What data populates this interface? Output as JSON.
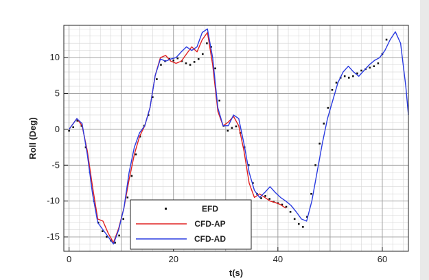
{
  "chart_data": {
    "type": "line",
    "title": "",
    "xlabel": "t(s)",
    "ylabel": "Roll (Deg)",
    "xlim": [
      -1,
      65
    ],
    "ylim": [
      -17,
      14.5
    ],
    "xticks": [
      0,
      20,
      40,
      60
    ],
    "yticks": [
      -15,
      -10,
      -5,
      0,
      5,
      10
    ],
    "grid": true,
    "legend_position": "bottom-center",
    "series": [
      {
        "name": "EFD",
        "style": "markers",
        "color": "#111111",
        "points": [
          [
            0,
            -0.2
          ],
          [
            0.8,
            0.3
          ],
          [
            1.6,
            1.2
          ],
          [
            2.4,
            0.5
          ],
          [
            3.2,
            -2.5
          ],
          [
            4,
            -6
          ],
          [
            4.8,
            -10
          ],
          [
            5.6,
            -13
          ],
          [
            6.4,
            -14.2
          ],
          [
            7.2,
            -15
          ],
          [
            8,
            -15.5
          ],
          [
            8.8,
            -15.8
          ],
          [
            9.6,
            -14.8
          ],
          [
            10.4,
            -12.5
          ],
          [
            11.2,
            -9.5
          ],
          [
            12,
            -6.5
          ],
          [
            12.8,
            -3.5
          ],
          [
            13.6,
            -1
          ],
          [
            14.4,
            0.5
          ],
          [
            15.2,
            2
          ],
          [
            16,
            4.5
          ],
          [
            16.8,
            7
          ],
          [
            17.6,
            9
          ],
          [
            18.4,
            9.5
          ],
          [
            19.2,
            9.8
          ],
          [
            20,
            9.6
          ],
          [
            20.8,
            9.9
          ],
          [
            21.6,
            9.5
          ],
          [
            22.4,
            9.2
          ],
          [
            23.2,
            9
          ],
          [
            24,
            9.4
          ],
          [
            24.8,
            9.8
          ],
          [
            25.6,
            10.5
          ],
          [
            26.4,
            12
          ],
          [
            27.2,
            11.5
          ],
          [
            28,
            8.5
          ],
          [
            28.8,
            4
          ],
          [
            29.6,
            0.5
          ],
          [
            30.4,
            -0.2
          ],
          [
            31.2,
            0.2
          ],
          [
            32,
            0.4
          ],
          [
            32.8,
            -0.5
          ],
          [
            33.6,
            -2.5
          ],
          [
            34.4,
            -5
          ],
          [
            35.2,
            -7.5
          ],
          [
            36,
            -9
          ],
          [
            36.8,
            -9.6
          ],
          [
            37.6,
            -9.3
          ],
          [
            38.4,
            -9.7
          ],
          [
            39.2,
            -10.1
          ],
          [
            40,
            -10.3
          ],
          [
            40.8,
            -10.5
          ],
          [
            41.6,
            -10.8
          ],
          [
            42.4,
            -11.5
          ],
          [
            43.2,
            -12.5
          ],
          [
            44,
            -13.2
          ],
          [
            44.8,
            -13.6
          ],
          [
            45.6,
            -12.2
          ],
          [
            46.4,
            -9
          ],
          [
            47.2,
            -5
          ],
          [
            48,
            -2
          ],
          [
            48.8,
            0.8
          ],
          [
            49.6,
            3
          ],
          [
            50.4,
            5.5
          ],
          [
            51.2,
            6.5
          ],
          [
            52,
            7.2
          ],
          [
            52.8,
            7.4
          ],
          [
            53.6,
            7.2
          ],
          [
            54.4,
            7.4
          ],
          [
            55.2,
            7.8
          ],
          [
            56,
            8.2
          ],
          [
            56.8,
            8.4
          ],
          [
            57.6,
            8.6
          ],
          [
            58.4,
            8.8
          ],
          [
            59.2,
            9.2
          ],
          [
            60,
            10.5
          ],
          [
            60.8,
            12.5
          ]
        ]
      },
      {
        "name": "CFD-AP",
        "style": "line",
        "color": "#e02020",
        "points": [
          [
            0,
            0
          ],
          [
            1.5,
            1.5
          ],
          [
            2.5,
            0.5
          ],
          [
            3.5,
            -3
          ],
          [
            4.5,
            -8
          ],
          [
            5.5,
            -12.5
          ],
          [
            6.5,
            -12.8
          ],
          [
            7.5,
            -14.5
          ],
          [
            8.5,
            -15.8
          ],
          [
            9.5,
            -13.8
          ],
          [
            10.5,
            -11
          ],
          [
            11.5,
            -7
          ],
          [
            12.5,
            -3.5
          ],
          [
            13.5,
            -1
          ],
          [
            14.5,
            0.5
          ],
          [
            15.5,
            3
          ],
          [
            16.5,
            7.5
          ],
          [
            17.5,
            10
          ],
          [
            18.5,
            10.3
          ],
          [
            19.5,
            9.5
          ],
          [
            20.5,
            9.2
          ],
          [
            21.5,
            9.5
          ],
          [
            22.5,
            10.5
          ],
          [
            23.5,
            11.5
          ],
          [
            24.5,
            10.8
          ],
          [
            25.5,
            12.5
          ],
          [
            26.5,
            13.5
          ],
          [
            27.5,
            9
          ],
          [
            28.5,
            2.5
          ],
          [
            29.5,
            0.5
          ],
          [
            30.5,
            1
          ],
          [
            31.5,
            1.8
          ],
          [
            32.5,
            0.5
          ],
          [
            33.5,
            -3
          ],
          [
            34.5,
            -7.5
          ],
          [
            35.5,
            -9.5
          ],
          [
            36.5,
            -9
          ],
          [
            37.5,
            -9.5
          ],
          [
            38.5,
            -10
          ],
          [
            39.5,
            -10.2
          ],
          [
            40.5,
            -10.5
          ],
          [
            41.5,
            -11
          ]
        ]
      },
      {
        "name": "CFD-AD",
        "style": "line",
        "color": "#2a3be0",
        "points": [
          [
            0,
            0
          ],
          [
            1.5,
            1.5
          ],
          [
            2.5,
            0.8
          ],
          [
            3.5,
            -3.5
          ],
          [
            4.5,
            -9
          ],
          [
            5.5,
            -13
          ],
          [
            6.5,
            -14
          ],
          [
            7.5,
            -15
          ],
          [
            8.5,
            -16
          ],
          [
            9.5,
            -14
          ],
          [
            10.5,
            -11
          ],
          [
            11.5,
            -6
          ],
          [
            12.5,
            -2.5
          ],
          [
            13.5,
            -0.5
          ],
          [
            14.5,
            0.5
          ],
          [
            15.5,
            3
          ],
          [
            16.5,
            7.5
          ],
          [
            17.5,
            9.8
          ],
          [
            18.5,
            9.5
          ],
          [
            19.5,
            9.8
          ],
          [
            20.5,
            10
          ],
          [
            21.5,
            10.8
          ],
          [
            22.5,
            11.5
          ],
          [
            23.5,
            11
          ],
          [
            24.5,
            11.5
          ],
          [
            25.5,
            13.5
          ],
          [
            26.5,
            14
          ],
          [
            27.5,
            10
          ],
          [
            28.5,
            3
          ],
          [
            29.5,
            0.5
          ],
          [
            30.5,
            0.5
          ],
          [
            31.5,
            2
          ],
          [
            32.5,
            1.5
          ],
          [
            33.5,
            -2
          ],
          [
            34.5,
            -6
          ],
          [
            35.5,
            -8.5
          ],
          [
            36.5,
            -9.5
          ],
          [
            37.5,
            -8.8
          ],
          [
            38.5,
            -8
          ],
          [
            39.5,
            -8.8
          ],
          [
            40.5,
            -9.5
          ],
          [
            41.5,
            -10
          ],
          [
            42.5,
            -10.6
          ],
          [
            43.5,
            -11.5
          ],
          [
            44.5,
            -12.5
          ],
          [
            45.5,
            -12.8
          ],
          [
            46.5,
            -10
          ],
          [
            47.5,
            -6
          ],
          [
            48.5,
            -2
          ],
          [
            49.5,
            1.5
          ],
          [
            50.5,
            4
          ],
          [
            51.5,
            6.5
          ],
          [
            52.5,
            8
          ],
          [
            53.5,
            8.8
          ],
          [
            54.5,
            8
          ],
          [
            55.5,
            7.4
          ],
          [
            56.5,
            8.2
          ],
          [
            57.5,
            9
          ],
          [
            58.5,
            9.6
          ],
          [
            59.5,
            10
          ],
          [
            60.5,
            11
          ],
          [
            61.5,
            12.5
          ],
          [
            62.5,
            13.6
          ],
          [
            63.5,
            12
          ],
          [
            64.5,
            6
          ],
          [
            65,
            2
          ]
        ]
      }
    ]
  }
}
